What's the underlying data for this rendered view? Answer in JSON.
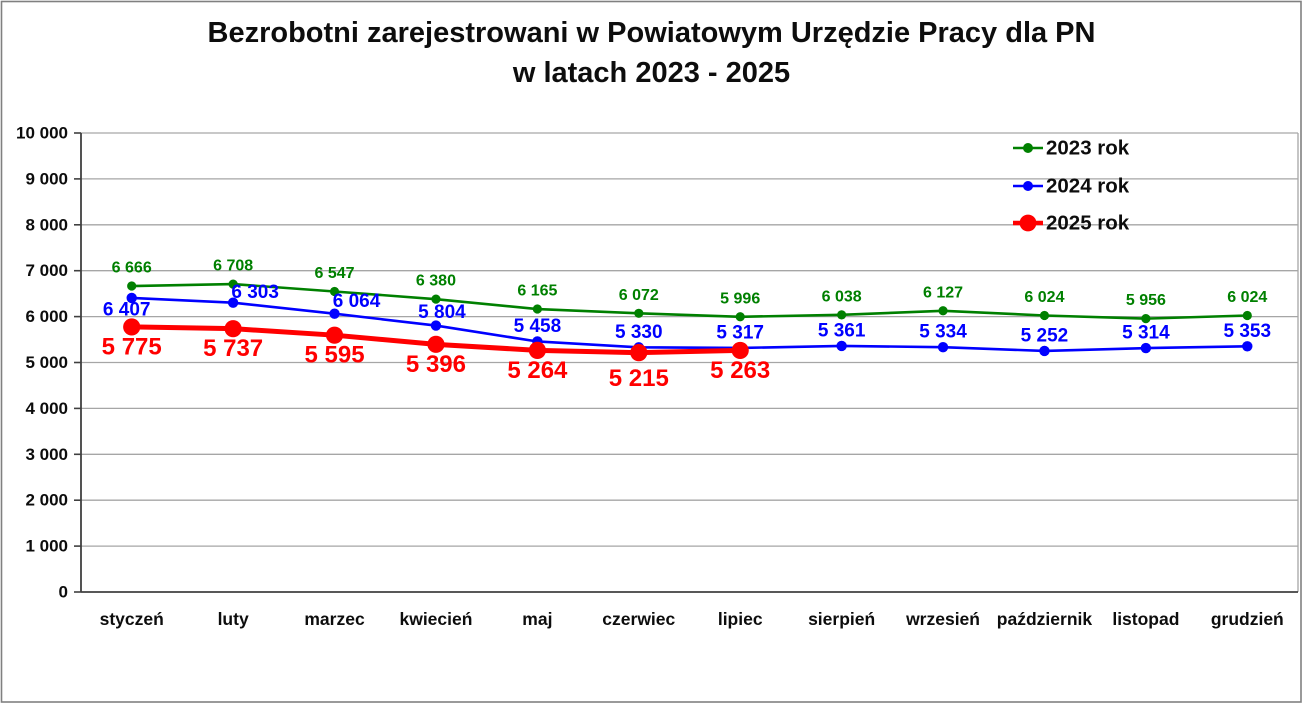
{
  "title": {
    "line1": "Bezrobotni zarejestrowani w Powiatowym Urzędzie Pracy dla PN",
    "line2": "w latach 2023 - 2025"
  },
  "colors": {
    "series_2023": "#008000",
    "series_2024": "#0000ff",
    "series_2025": "#ff0000",
    "gridline": "#a6a6a6",
    "axis": "#404040",
    "text": "#0d0d0d",
    "figure_border": "#808080"
  },
  "chart_data": {
    "type": "line",
    "title": "Bezrobotni zarejestrowani w Powiatowym Urzędzie Pracy dla PN w latach 2023 - 2025",
    "categories": [
      "styczeń",
      "luty",
      "marzec",
      "kwiecień",
      "maj",
      "czerwiec",
      "lipiec",
      "sierpień",
      "wrzesień",
      "październik",
      "listopad",
      "grudzień"
    ],
    "series": [
      {
        "name": "2023 rok",
        "color": "#008000",
        "values": [
          6666,
          6708,
          6547,
          6380,
          6165,
          6072,
          5996,
          6038,
          6127,
          6024,
          5956,
          6024
        ]
      },
      {
        "name": "2024 rok",
        "color": "#0000ff",
        "values": [
          6407,
          6303,
          6064,
          5804,
          5458,
          5330,
          5317,
          5361,
          5334,
          5252,
          5314,
          5353
        ]
      },
      {
        "name": "2025 rok",
        "color": "#ff0000",
        "values": [
          5775,
          5737,
          5595,
          5396,
          5264,
          5215,
          5263
        ]
      }
    ],
    "data_labels": true,
    "xlabel": "",
    "ylabel": "",
    "ylim": [
      0,
      10000
    ],
    "ytick_step": 1000,
    "ytick_labels": [
      "0",
      "1 000",
      "2 000",
      "3 000",
      "4 000",
      "5 000",
      "6 000",
      "7 000",
      "8 000",
      "9 000",
      "10 000"
    ],
    "grid": true,
    "legend_position": "top-right",
    "legend_entries": [
      "2023 rok",
      "2024 rok",
      "2025 rok"
    ]
  }
}
